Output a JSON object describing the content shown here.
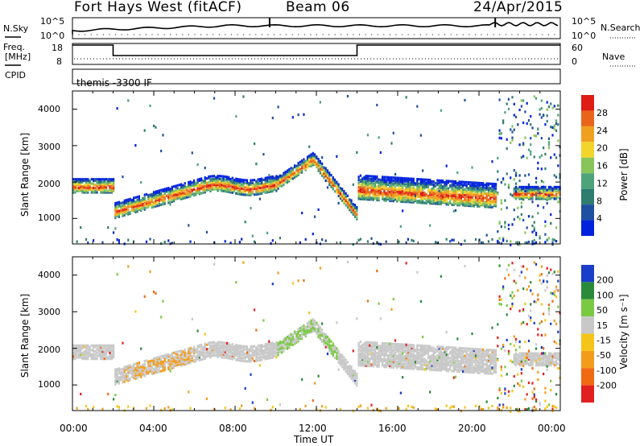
{
  "header": {
    "station": "Fort Hays West (fitACF)",
    "beam": "Beam 06",
    "date": "24/Apr/2015"
  },
  "top_panels": {
    "nsky_label": "N.Sky",
    "nsky_ticks": [
      "10^5",
      "10^0"
    ],
    "nsearch_label": "N.Search",
    "nsearch_ticks": [
      "10^5",
      "10^0"
    ],
    "freq_label": "Freq.",
    "freq_unit": "[MHz]",
    "freq_ticks": [
      "18",
      "8"
    ],
    "nave_label": "Nave",
    "nave_ticks": [
      "60",
      "0"
    ],
    "cpid_label": "CPID",
    "cpid_text": "themis -3300 IF"
  },
  "chart_data": [
    {
      "type": "heatmap",
      "name": "power",
      "ylabel": "Slant Range [km]",
      "xlabel": "",
      "ylim": [
        300,
        4500
      ],
      "yticks": [
        "1000",
        "2000",
        "3000",
        "4000"
      ],
      "colorbar": {
        "label": "Power [dB]",
        "ticks": [
          "4",
          "8",
          "12",
          "16",
          "20",
          "24",
          "28"
        ],
        "colors": [
          "#0022dd",
          "#1f4fa0",
          "#2e7d6e",
          "#4ea37a",
          "#87c55b",
          "#f2d52a",
          "#f0a020",
          "#e8641b",
          "#dd1c16"
        ]
      }
    },
    {
      "type": "heatmap",
      "name": "velocity",
      "ylabel": "Slant Range [km]",
      "xlabel": "Time UT",
      "ylim": [
        300,
        4500
      ],
      "yticks": [
        "1000",
        "2000",
        "3000",
        "4000"
      ],
      "xticks": [
        "00:00",
        "04:00",
        "08:00",
        "12:00",
        "16:00",
        "20:00",
        "00:00"
      ],
      "colorbar": {
        "label": "Velocity [m s⁻¹]",
        "ticks": [
          "200",
          "100",
          "50",
          "15",
          "-15",
          "-50",
          "-100",
          "-200"
        ],
        "colors": [
          "#1a3ec7",
          "#2a8a3c",
          "#7ac943",
          "#c8c8c8",
          "#f3c51a",
          "#f39c1a",
          "#f06a14",
          "#e02020"
        ]
      }
    }
  ]
}
